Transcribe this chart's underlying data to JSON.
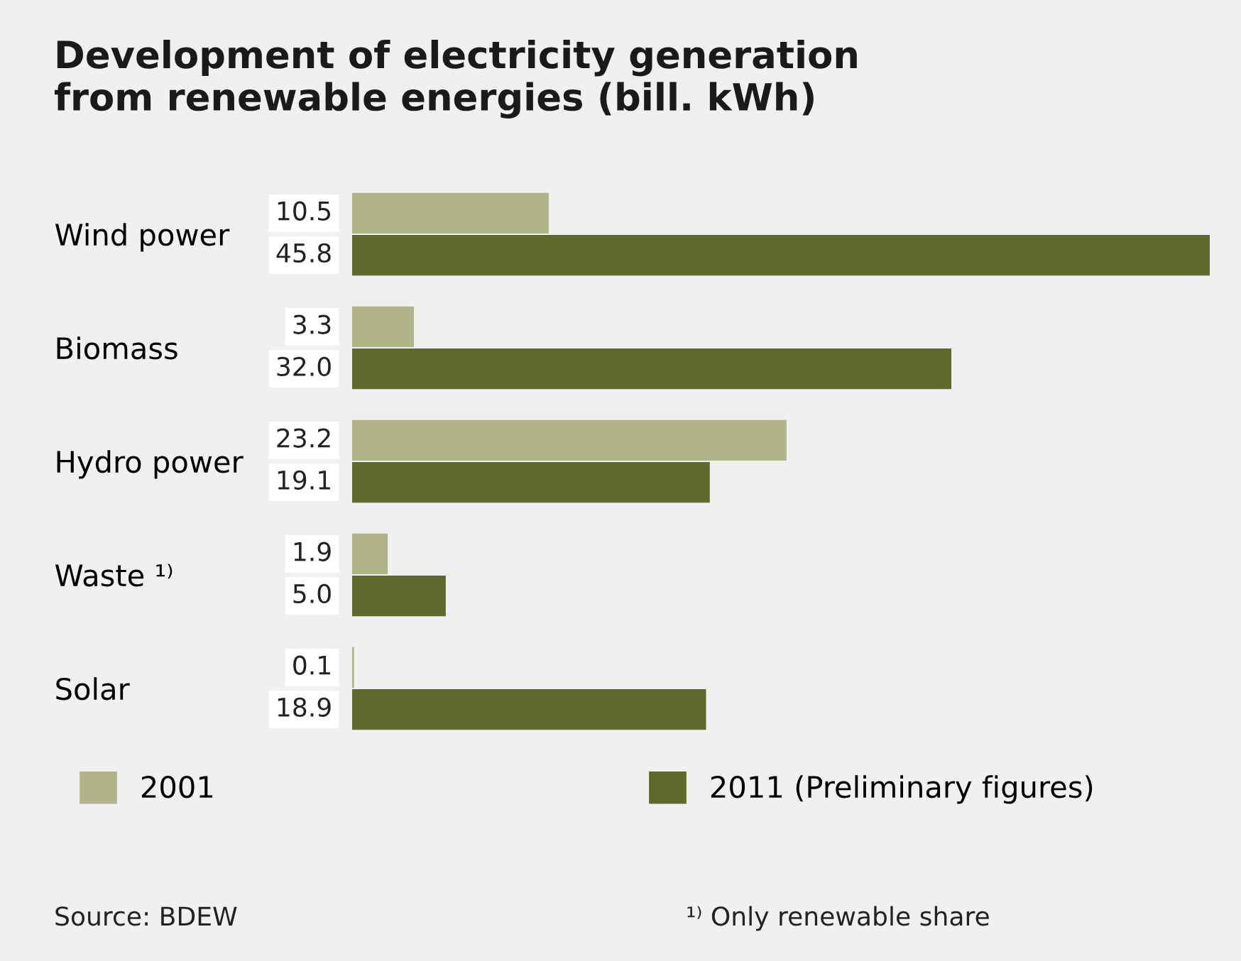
{
  "chart_data": {
    "type": "bar",
    "orientation": "horizontal",
    "title": "Development of electricity generation\nfrom renewable energies (bill. kWh)",
    "categories": [
      "Wind power",
      "Biomass",
      "Hydro power",
      "Waste ¹⁾",
      "Solar"
    ],
    "series": [
      {
        "name": "2001",
        "color": "#b1b48b",
        "values": [
          10.5,
          3.3,
          23.2,
          1.9,
          0.1
        ],
        "value_labels": [
          "10.5",
          "3.3",
          "23.2",
          "1.9",
          "0.1"
        ]
      },
      {
        "name": "2011 (Preliminary figures)",
        "color": "#5e6a29",
        "values": [
          45.8,
          32.0,
          19.1,
          5.0,
          18.9
        ],
        "value_labels": [
          "45.8",
          "32.0",
          "19.1",
          "5.0",
          "18.9"
        ]
      }
    ],
    "legend": "bottom",
    "grid": false,
    "annotations": [
      "Source: BDEW",
      "¹⁾ Only renewable share"
    ]
  }
}
